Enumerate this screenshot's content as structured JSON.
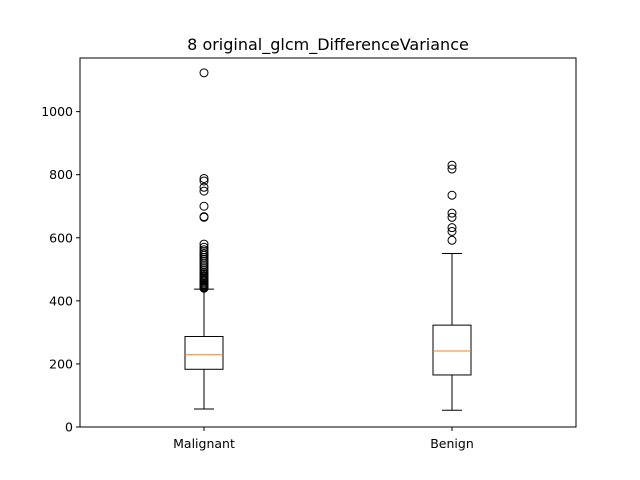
{
  "chart_data": {
    "type": "boxplot",
    "title": "8 original_glcm_DifferenceVariance",
    "xlabel": "",
    "ylabel": "",
    "ylim": [
      0,
      1170
    ],
    "yticks": [
      0,
      200,
      400,
      600,
      800,
      1000
    ],
    "grid": false,
    "categories": [
      "Malignant",
      "Benign"
    ],
    "boxes": [
      {
        "label": "Malignant",
        "whisker_low": 57,
        "q1": 183,
        "median": 229,
        "q3": 287,
        "whisker_high": 437,
        "outliers": [
          440,
          443,
          446,
          449,
          452,
          456,
          460,
          464,
          468,
          472,
          476,
          480,
          485,
          490,
          496,
          502,
          508,
          514,
          520,
          526,
          532,
          538,
          544,
          550,
          556,
          562,
          570,
          580,
          665,
          667,
          700,
          748,
          760,
          780,
          788,
          1123
        ]
      },
      {
        "label": "Benign",
        "whisker_low": 53,
        "q1": 165,
        "median": 241,
        "q3": 323,
        "whisker_high": 550,
        "outliers": [
          592,
          620,
          632,
          665,
          678,
          735,
          818,
          830
        ]
      }
    ],
    "colors": {
      "box": "#000000",
      "median": "#ff7f0e",
      "outlier": "#000000"
    }
  }
}
